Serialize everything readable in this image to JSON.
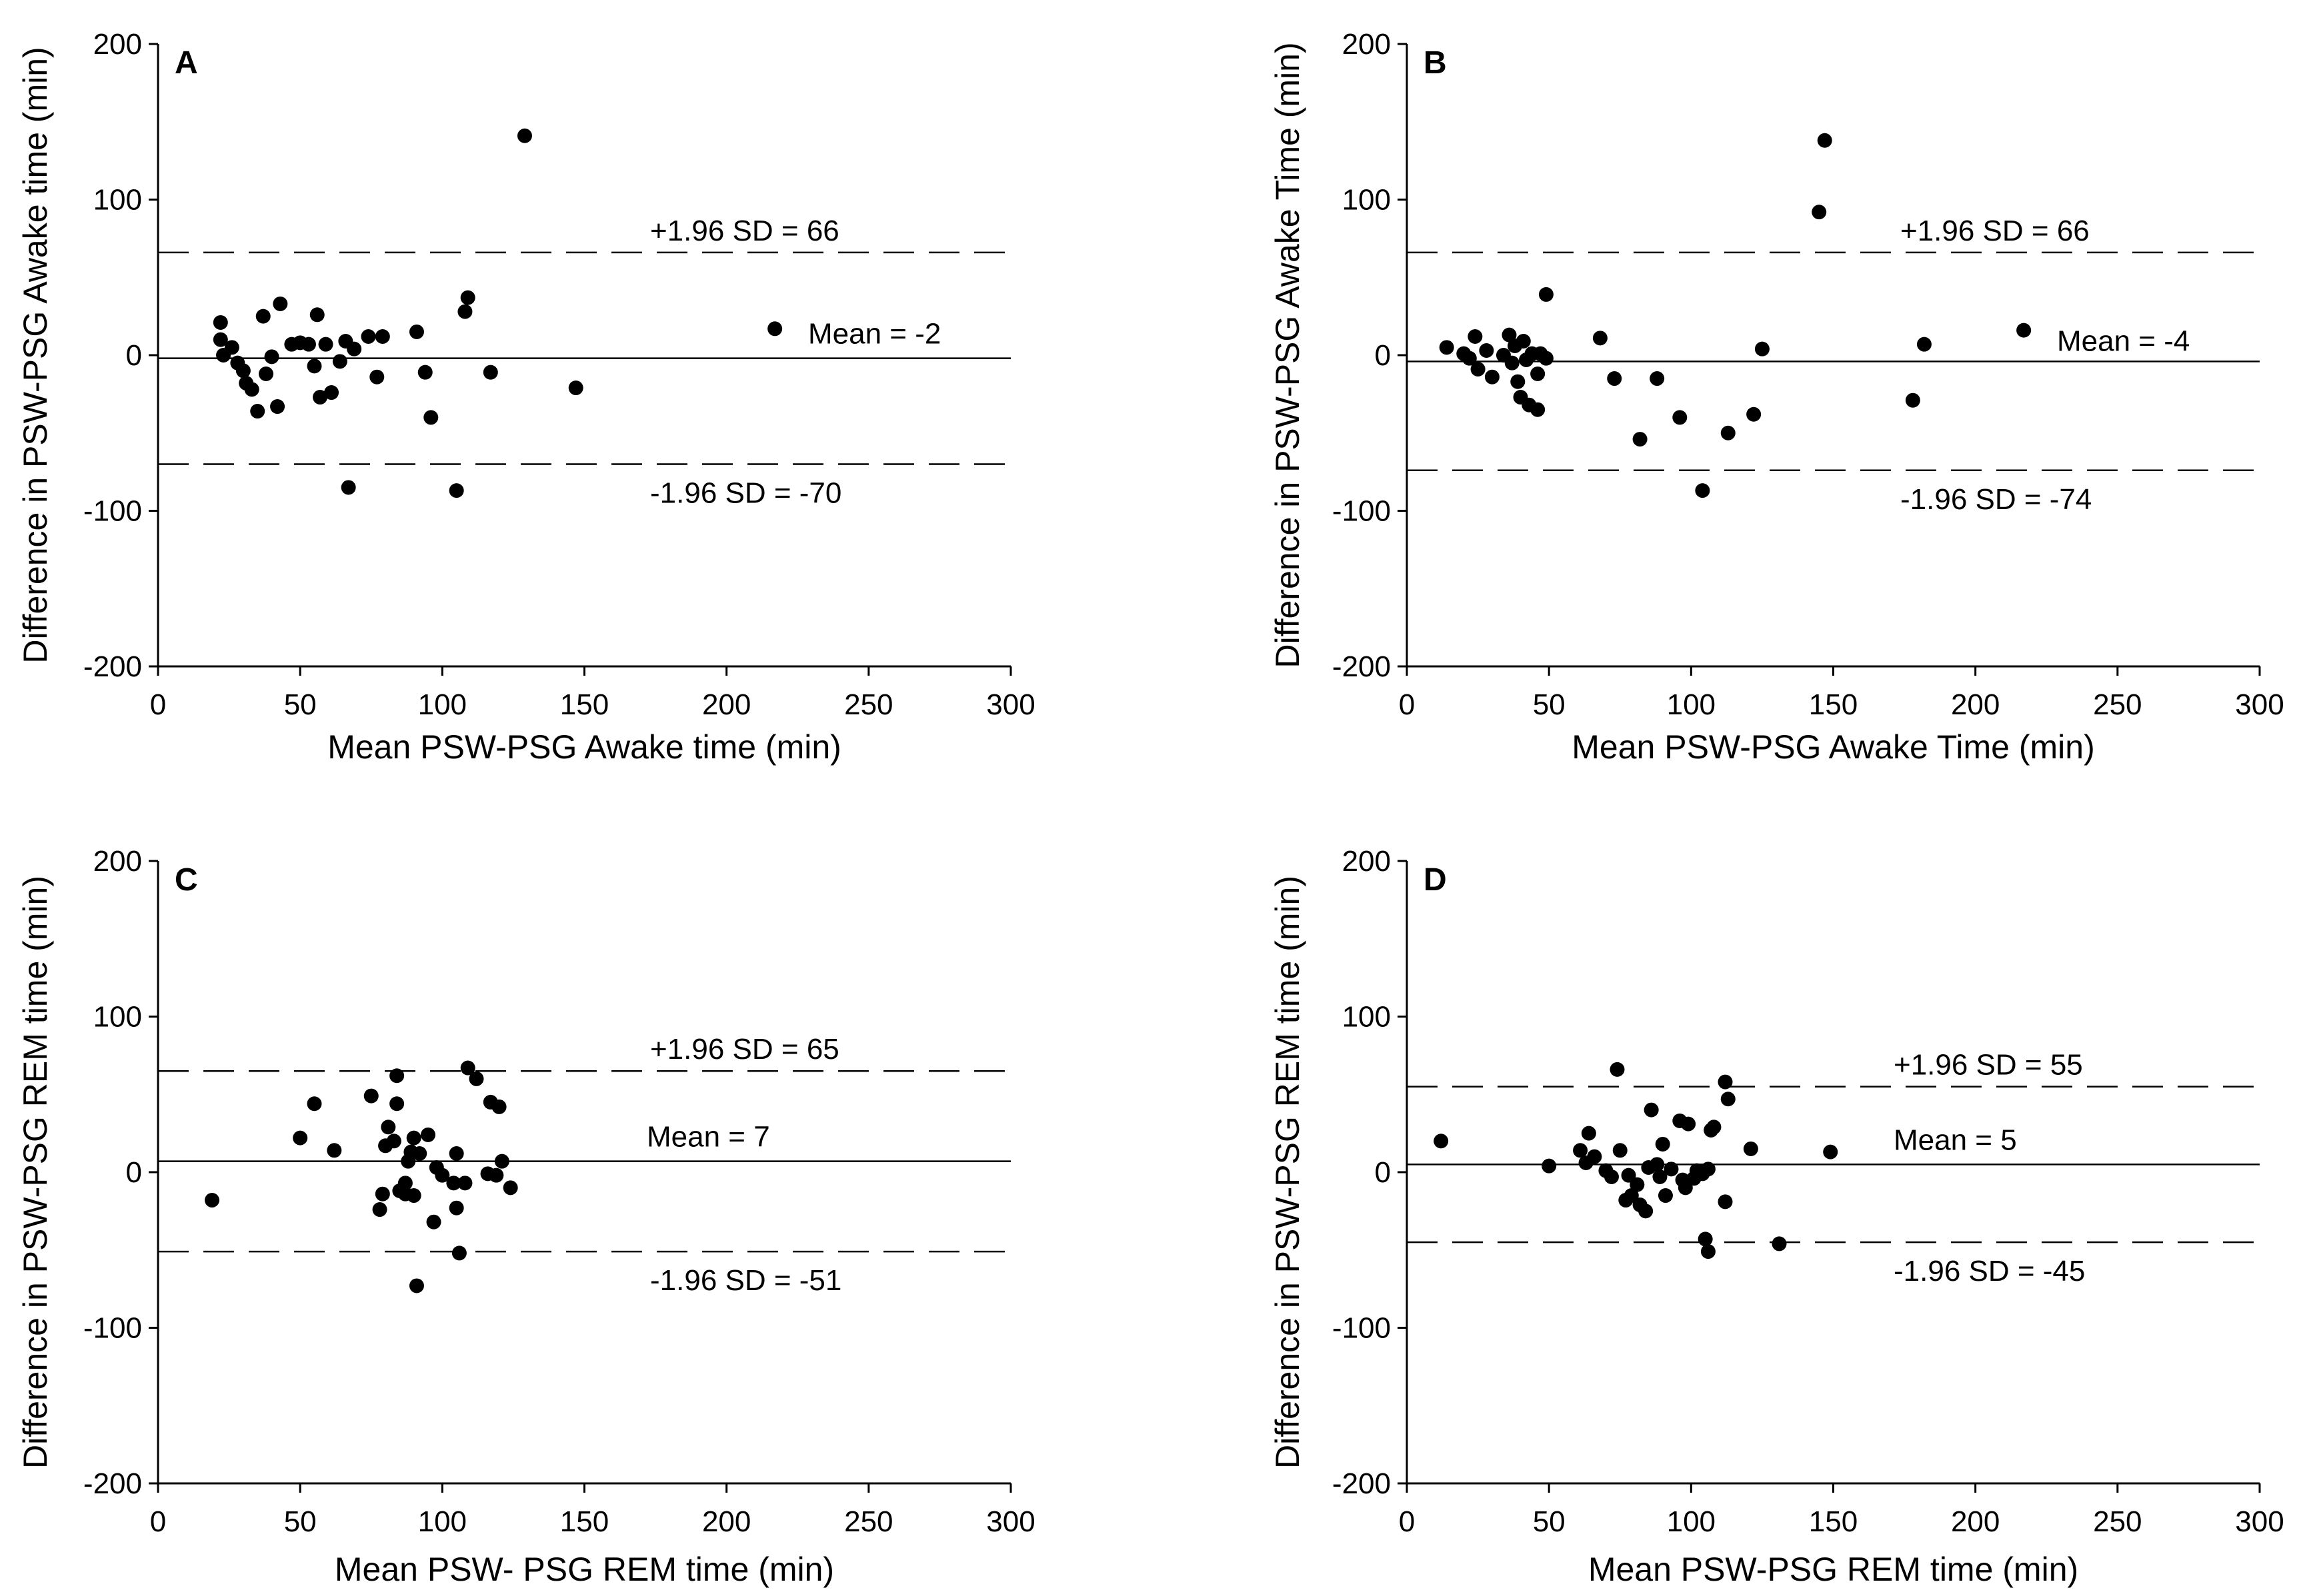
{
  "chart_data": [
    {
      "type": "scatter",
      "panel": "A",
      "xlabel": "Mean PSW-PSG Awake time (min)",
      "ylabel": "Difference in PSW-PSG Awake time (min)",
      "xlim": [
        0,
        300
      ],
      "ylim": [
        -200,
        200
      ],
      "xticks": [
        0,
        50,
        100,
        150,
        200,
        250,
        300
      ],
      "yticks": [
        200,
        100,
        0,
        -100,
        -200
      ],
      "mean": -2,
      "upper": 66,
      "lower": -70,
      "mean_label": "Mean = -2",
      "upper_label": "+1.96 SD = 66",
      "lower_label": "-1.96 SD = -70",
      "points": [
        [
          22,
          21
        ],
        [
          22,
          10
        ],
        [
          23,
          0
        ],
        [
          26,
          5
        ],
        [
          28,
          -5
        ],
        [
          30,
          -10
        ],
        [
          31,
          -18
        ],
        [
          33,
          -22
        ],
        [
          35,
          -36
        ],
        [
          37,
          25
        ],
        [
          38,
          -12
        ],
        [
          40,
          -1
        ],
        [
          42,
          -33
        ],
        [
          43,
          33
        ],
        [
          47,
          7
        ],
        [
          50,
          8
        ],
        [
          53,
          7
        ],
        [
          55,
          -7
        ],
        [
          56,
          26
        ],
        [
          57,
          -27
        ],
        [
          59,
          7
        ],
        [
          61,
          -24
        ],
        [
          64,
          -4
        ],
        [
          66,
          9
        ],
        [
          67,
          -85
        ],
        [
          69,
          4
        ],
        [
          74,
          12
        ],
        [
          77,
          -14
        ],
        [
          79,
          12
        ],
        [
          91,
          15
        ],
        [
          94,
          -11
        ],
        [
          96,
          -40
        ],
        [
          108,
          28
        ],
        [
          109,
          37
        ],
        [
          105,
          -87
        ],
        [
          117,
          -11
        ],
        [
          129,
          141
        ],
        [
          147,
          -21
        ],
        [
          217,
          17
        ]
      ]
    },
    {
      "type": "scatter",
      "panel": "B",
      "xlabel": "Mean PSW-PSG Awake Time (min)",
      "ylabel": "Difference in PSW-PSG Awake Time (min)",
      "xlim": [
        0,
        300
      ],
      "ylim": [
        -200,
        200
      ],
      "xticks": [
        0,
        50,
        100,
        150,
        200,
        250,
        300
      ],
      "yticks": [
        200,
        100,
        0,
        -100,
        -200
      ],
      "mean": -4,
      "upper": 66,
      "lower": -74,
      "mean_label": "Mean = -4",
      "upper_label": "+1.96 SD = 66",
      "lower_label": "-1.96 SD = -74",
      "points": [
        [
          14,
          5
        ],
        [
          20,
          1
        ],
        [
          22,
          -2
        ],
        [
          24,
          12
        ],
        [
          25,
          -9
        ],
        [
          28,
          3
        ],
        [
          30,
          -14
        ],
        [
          34,
          0
        ],
        [
          36,
          13
        ],
        [
          37,
          -5
        ],
        [
          38,
          6
        ],
        [
          39,
          -17
        ],
        [
          40,
          -27
        ],
        [
          41,
          9
        ],
        [
          42,
          -3
        ],
        [
          43,
          -32
        ],
        [
          44,
          1
        ],
        [
          46,
          -12
        ],
        [
          46,
          -35
        ],
        [
          47,
          1
        ],
        [
          49,
          -2
        ],
        [
          49,
          39
        ],
        [
          68,
          11
        ],
        [
          73,
          -15
        ],
        [
          82,
          -54
        ],
        [
          88,
          -15
        ],
        [
          96,
          -40
        ],
        [
          104,
          -87
        ],
        [
          113,
          -50
        ],
        [
          122,
          -38
        ],
        [
          125,
          4
        ],
        [
          145,
          92
        ],
        [
          147,
          138
        ],
        [
          178,
          -29
        ],
        [
          182,
          7
        ],
        [
          217,
          16
        ]
      ]
    },
    {
      "type": "scatter",
      "panel": "C",
      "xlabel": "Mean PSW- PSG REM time (min)",
      "ylabel": "Difference in PSW-PSG REM time (min)",
      "xlim": [
        0,
        300
      ],
      "ylim": [
        -200,
        200
      ],
      "xticks": [
        0,
        50,
        100,
        150,
        200,
        250,
        300
      ],
      "yticks": [
        200,
        100,
        0,
        -100,
        -200
      ],
      "mean": 7,
      "upper": 65,
      "lower": -51,
      "mean_label": "Mean = 7",
      "upper_label": "+1.96 SD = 65",
      "lower_label": "-1.96 SD = -51",
      "points": [
        [
          19,
          -18
        ],
        [
          50,
          22
        ],
        [
          55,
          44
        ],
        [
          62,
          14
        ],
        [
          75,
          49
        ],
        [
          78,
          -24
        ],
        [
          79,
          -14
        ],
        [
          80,
          17
        ],
        [
          81,
          29
        ],
        [
          83,
          20
        ],
        [
          84,
          44
        ],
        [
          84,
          62
        ],
        [
          85,
          -12
        ],
        [
          87,
          -7
        ],
        [
          87,
          -14
        ],
        [
          88,
          7
        ],
        [
          89,
          13
        ],
        [
          90,
          22
        ],
        [
          90,
          -15
        ],
        [
          91,
          -73
        ],
        [
          92,
          12
        ],
        [
          95,
          24
        ],
        [
          97,
          -32
        ],
        [
          98,
          3
        ],
        [
          100,
          -2
        ],
        [
          104,
          -7
        ],
        [
          105,
          12
        ],
        [
          105,
          -23
        ],
        [
          106,
          -52
        ],
        [
          108,
          -7
        ],
        [
          109,
          67
        ],
        [
          112,
          60
        ],
        [
          116,
          -1
        ],
        [
          117,
          45
        ],
        [
          119,
          -2
        ],
        [
          120,
          42
        ],
        [
          121,
          7
        ],
        [
          124,
          -10
        ]
      ]
    },
    {
      "type": "scatter",
      "panel": "D",
      "xlabel": "Mean PSW-PSG REM time (min)",
      "ylabel": "Difference in PSW-PSG REM time (min)",
      "xlim": [
        0,
        300
      ],
      "ylim": [
        -200,
        200
      ],
      "xticks": [
        0,
        50,
        100,
        150,
        200,
        250,
        300
      ],
      "yticks": [
        200,
        100,
        0,
        -100,
        -200
      ],
      "mean": 5,
      "upper": 55,
      "lower": -45,
      "mean_label": "Mean = 5",
      "upper_label": "+1.96 SD = 55",
      "lower_label": "-1.96 SD = -45",
      "points": [
        [
          12,
          20
        ],
        [
          50,
          4
        ],
        [
          61,
          14
        ],
        [
          63,
          6
        ],
        [
          64,
          25
        ],
        [
          66,
          10
        ],
        [
          70,
          1
        ],
        [
          72,
          -3
        ],
        [
          74,
          66
        ],
        [
          75,
          14
        ],
        [
          77,
          -18
        ],
        [
          78,
          -2
        ],
        [
          79,
          -15
        ],
        [
          81,
          -8
        ],
        [
          82,
          -21
        ],
        [
          84,
          -25
        ],
        [
          85,
          3
        ],
        [
          86,
          40
        ],
        [
          88,
          5
        ],
        [
          89,
          -3
        ],
        [
          90,
          18
        ],
        [
          91,
          -15
        ],
        [
          93,
          2
        ],
        [
          96,
          33
        ],
        [
          97,
          -5
        ],
        [
          98,
          -10
        ],
        [
          99,
          31
        ],
        [
          101,
          -4
        ],
        [
          102,
          1
        ],
        [
          104,
          -1
        ],
        [
          105,
          -43
        ],
        [
          106,
          2
        ],
        [
          106,
          -51
        ],
        [
          107,
          27
        ],
        [
          108,
          29
        ],
        [
          112,
          -19
        ],
        [
          112,
          58
        ],
        [
          113,
          47
        ],
        [
          121,
          15
        ],
        [
          131,
          -46
        ],
        [
          149,
          13
        ]
      ]
    }
  ]
}
